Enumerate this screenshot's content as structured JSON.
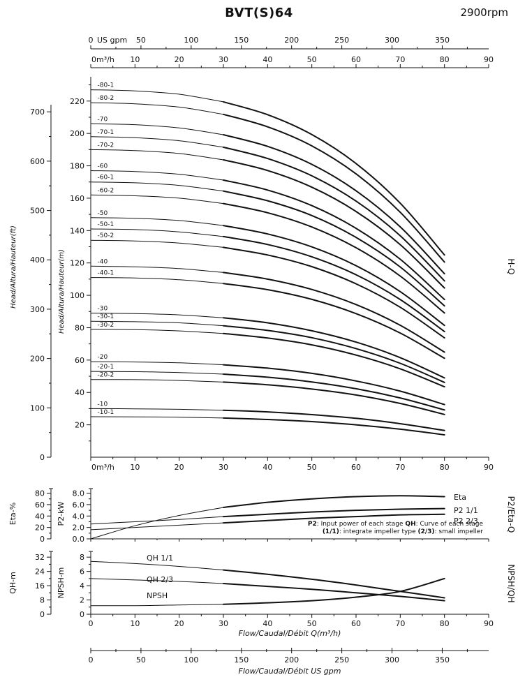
{
  "header": {
    "title": "BVT(S)64",
    "rpm": "2900rpm"
  },
  "panel_labels": {
    "main_right": "H-Q",
    "mid_right": "P2/Eta-Q",
    "bottom_right": "NPSH/QH"
  },
  "axis_labels": {
    "head_ft": "Head/Altura/Hauteur(ft)",
    "head_m": "Head/Altura/Hauteur(m)",
    "eta": "Eta-%",
    "p2": "P2-kW",
    "qh": "QH-m",
    "npsh": "NPSH-m",
    "flow_m3h": "Flow/Caudal/Débit Q(m³/h)",
    "flow_gpm": "Flow/Caudal/Débit  US gpm",
    "gpm_unit": "US gpm",
    "m3h_zero": "0m³/h",
    "gpm_zero": "0"
  },
  "axes": {
    "gpm_ticks": [
      0,
      50,
      100,
      150,
      200,
      250,
      300,
      350
    ],
    "m3h_ticks": [
      0,
      10,
      20,
      30,
      40,
      50,
      60,
      70,
      80,
      90
    ],
    "head_m_ticks": [
      20,
      40,
      60,
      80,
      100,
      120,
      140,
      160,
      180,
      200,
      220
    ],
    "head_ft_ticks": [
      0,
      100,
      200,
      300,
      400,
      500,
      600,
      700
    ],
    "eta_ticks": [
      0,
      20,
      40,
      60,
      80
    ],
    "p2_ticks": [
      0,
      2,
      4,
      6,
      8
    ],
    "npsh_ticks": [
      0,
      2,
      4,
      6,
      8
    ],
    "qh_ticks": [
      0,
      8,
      16,
      24,
      32
    ]
  },
  "middle_note": {
    "lines": [
      [
        {
          "t": "P2",
          "b": true
        },
        {
          "t": ": Input power of each stage ",
          "b": false
        },
        {
          "t": "QH",
          "b": true
        },
        {
          "t": ": Curve of each stage",
          "b": false
        }
      ],
      [
        {
          "t": "(1/1)",
          "b": true
        },
        {
          "t": ": integrate impeller type ",
          "b": false
        },
        {
          "t": "(2/3)",
          "b": true
        },
        {
          "t": ": small impeller",
          "b": false
        }
      ]
    ]
  },
  "chart_data": [
    {
      "type": "line",
      "title": "H-Q",
      "xlabel": "Flow/Caudal/Débit Q(m³/h)",
      "ylabel": "Head/Altura/Hauteur(m)",
      "ylabel2": "Head/Altura/Hauteur(ft)",
      "xlim": [
        0,
        90
      ],
      "ylim": [
        0,
        235
      ],
      "ylim_ft": [
        0,
        700
      ],
      "x": [
        0,
        10,
        20,
        30,
        40,
        50,
        60,
        70,
        80
      ],
      "series": [
        {
          "name": "-80-1",
          "values": [
            227,
            226.3,
            224.2,
            219.5,
            211.6,
            199.3,
            181.4,
            156.9,
            124.9
          ]
        },
        {
          "name": "-80-2",
          "values": [
            219,
            218.3,
            216.3,
            211.8,
            204.1,
            192.3,
            175.0,
            151.3,
            120.5
          ]
        },
        {
          "name": "-70",
          "values": [
            206,
            205.4,
            203.4,
            199.2,
            192.0,
            180.9,
            164.6,
            142.3,
            113.3
          ]
        },
        {
          "name": "-70-1",
          "values": [
            198,
            197.4,
            195.5,
            191.5,
            184.5,
            173.8,
            158.2,
            136.8,
            108.9
          ]
        },
        {
          "name": "-70-2",
          "values": [
            190,
            189.4,
            187.6,
            183.7,
            177.1,
            166.8,
            151.8,
            131.3,
            104.5
          ]
        },
        {
          "name": "-60",
          "values": [
            177,
            176.5,
            174.8,
            171.2,
            165.0,
            155.4,
            141.4,
            122.3,
            97.4
          ]
        },
        {
          "name": "-60-1",
          "values": [
            170,
            169.5,
            167.9,
            164.4,
            158.4,
            149.3,
            135.8,
            117.5,
            93.5
          ]
        },
        {
          "name": "-60-2",
          "values": [
            162,
            161.5,
            160.0,
            156.7,
            151.0,
            142.2,
            129.4,
            111.9,
            89.1
          ]
        },
        {
          "name": "-50",
          "values": [
            148,
            147.6,
            146.2,
            143.1,
            137.9,
            129.9,
            118.3,
            102.3,
            81.4
          ]
        },
        {
          "name": "-50-1",
          "values": [
            141,
            140.6,
            139.2,
            136.3,
            131.4,
            123.8,
            112.7,
            97.4,
            77.6
          ]
        },
        {
          "name": "-50-2",
          "values": [
            134,
            133.6,
            132.3,
            129.6,
            124.9,
            117.7,
            107.1,
            92.6,
            73.7
          ]
        },
        {
          "name": "-40",
          "values": [
            118,
            117.6,
            116.5,
            114.1,
            110.0,
            103.6,
            94.3,
            81.5,
            64.9
          ]
        },
        {
          "name": "-40-1",
          "values": [
            111,
            110.7,
            109.6,
            107.3,
            103.5,
            97.5,
            88.7,
            76.7,
            61.1
          ]
        },
        {
          "name": "-30",
          "values": [
            89,
            88.7,
            87.9,
            86.1,
            83.0,
            78.1,
            71.1,
            61.5,
            49.0
          ]
        },
        {
          "name": "-30-1",
          "values": [
            84,
            83.7,
            83.0,
            81.2,
            78.3,
            73.8,
            67.1,
            58.0,
            46.2
          ]
        },
        {
          "name": "-30-2",
          "values": [
            79,
            78.8,
            78.0,
            76.4,
            73.6,
            69.4,
            63.1,
            54.6,
            43.5
          ]
        },
        {
          "name": "-20",
          "values": [
            59,
            58.8,
            58.3,
            57.1,
            55.0,
            51.8,
            47.1,
            40.8,
            32.5
          ]
        },
        {
          "name": "-20-1",
          "values": [
            53,
            52.8,
            52.3,
            51.3,
            49.4,
            46.5,
            42.3,
            36.6,
            29.2
          ]
        },
        {
          "name": "-20-2",
          "values": [
            48,
            47.9,
            47.4,
            46.4,
            44.7,
            42.1,
            38.4,
            33.2,
            26.4
          ]
        },
        {
          "name": "-10",
          "values": [
            30,
            29.9,
            29.6,
            29.0,
            28.0,
            26.3,
            24.0,
            20.7,
            16.5
          ]
        },
        {
          "name": "-10-1",
          "values": [
            25,
            24.9,
            24.7,
            24.2,
            23.3,
            22.0,
            20.0,
            17.3,
            13.8
          ]
        }
      ]
    },
    {
      "type": "line",
      "title": "P2/Eta-Q",
      "ylabel": "Eta-%",
      "ylabel2": "P2-kW",
      "ylim_eta": [
        0,
        88
      ],
      "ylim_p2": [
        0,
        8.8
      ],
      "x": [
        0,
        10,
        20,
        30,
        40,
        50,
        60,
        70,
        80
      ],
      "series": [
        {
          "name": "Eta",
          "axis": "eta",
          "values": [
            0,
            23,
            41,
            55,
            64,
            70,
            74,
            75.5,
            74
          ]
        },
        {
          "name": "P2 1/1",
          "axis": "p2",
          "values": [
            2.6,
            3.0,
            3.4,
            3.9,
            4.3,
            4.7,
            5.0,
            5.2,
            5.3
          ]
        },
        {
          "name": "P2 2/3",
          "axis": "p2",
          "values": [
            1.6,
            2.0,
            2.4,
            2.8,
            3.2,
            3.6,
            3.9,
            4.2,
            4.3
          ]
        }
      ]
    },
    {
      "type": "line",
      "title": "NPSH/QH",
      "ylabel": "QH-m",
      "ylabel2": "NPSH-m",
      "ylim_qh": [
        0,
        35.2
      ],
      "ylim_npsh": [
        0,
        8.8
      ],
      "x": [
        0,
        10,
        20,
        30,
        40,
        50,
        60,
        70,
        80
      ],
      "series": [
        {
          "name": "QH 1/1",
          "axis": "qh",
          "values": [
            29.6,
            28.4,
            26.8,
            24.8,
            22.4,
            19.6,
            16.4,
            12.8,
            9.2
          ]
        },
        {
          "name": "QH 2/3",
          "axis": "qh",
          "values": [
            20,
            19.2,
            18.4,
            17.2,
            15.6,
            14,
            12,
            10,
            7.6
          ]
        },
        {
          "name": "NPSH",
          "axis": "npsh",
          "values": [
            1.2,
            1.2,
            1.3,
            1.4,
            1.6,
            1.9,
            2.4,
            3.2,
            5.0
          ]
        }
      ]
    }
  ]
}
